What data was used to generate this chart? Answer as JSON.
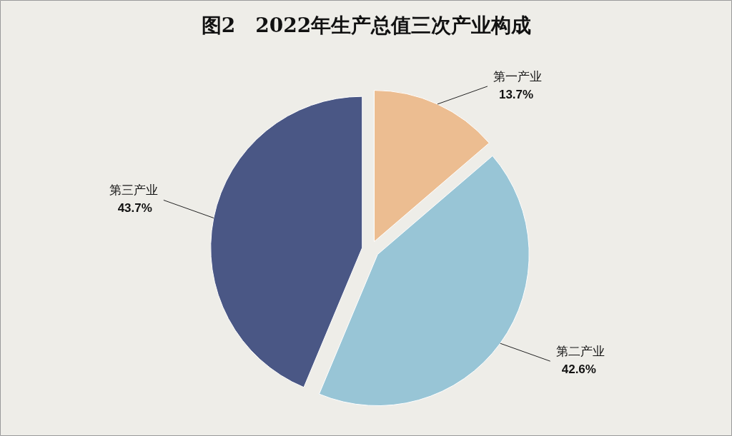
{
  "chart_data": {
    "type": "pie",
    "title": "图2　2022年生产总值三次产业构成",
    "categories": [
      "第一产业",
      "第二产业",
      "第三产业"
    ],
    "values": [
      13.7,
      42.6,
      43.7
    ],
    "value_labels": [
      "13.7%",
      "42.6%",
      "43.7%"
    ],
    "colors": [
      "#ecbd91",
      "#98c5d6",
      "#4a5785"
    ]
  }
}
